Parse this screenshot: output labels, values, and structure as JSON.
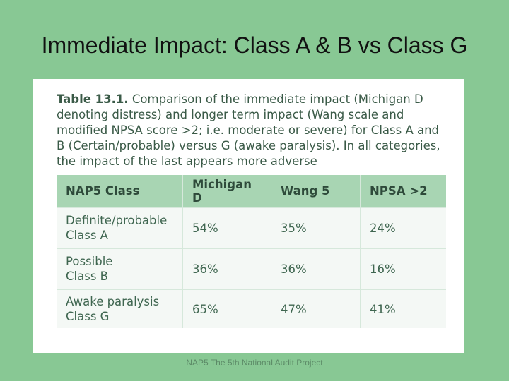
{
  "slide": {
    "title": "Immediate Impact: Class A & B vs Class G",
    "footer": "NAP5 The 5th National Audit Project"
  },
  "figure": {
    "caption_label": "Table 13.1.",
    "caption_text": " Comparison of the immediate impact (Michigan D denoting distress) and longer term impact (Wang scale and modified NPSA score >2; i.e. moderate or severe) for Class A and B (Certain/probable) versus G (awake paralysis). In all categories, the impact of the last appears more adverse"
  },
  "table": {
    "headers": [
      "NAP5 Class",
      "Michigan D",
      "Wang 5",
      "NPSA >2"
    ],
    "rows": [
      {
        "class_line1": "Definite/probable",
        "class_line2": "Class A",
        "michigan": "54%",
        "wang": "35%",
        "npsa": "24%"
      },
      {
        "class_line1": "Possible",
        "class_line2": "Class B",
        "michigan": "36%",
        "wang": "36%",
        "npsa": "16%"
      },
      {
        "class_line1": "Awake paralysis",
        "class_line2": "Class G",
        "michigan": "65%",
        "wang": "47%",
        "npsa": "41%"
      }
    ]
  },
  "colors": {
    "slide_background": "#88c894",
    "header_fill": "#a8d5b3",
    "text_green": "#3f6650"
  }
}
